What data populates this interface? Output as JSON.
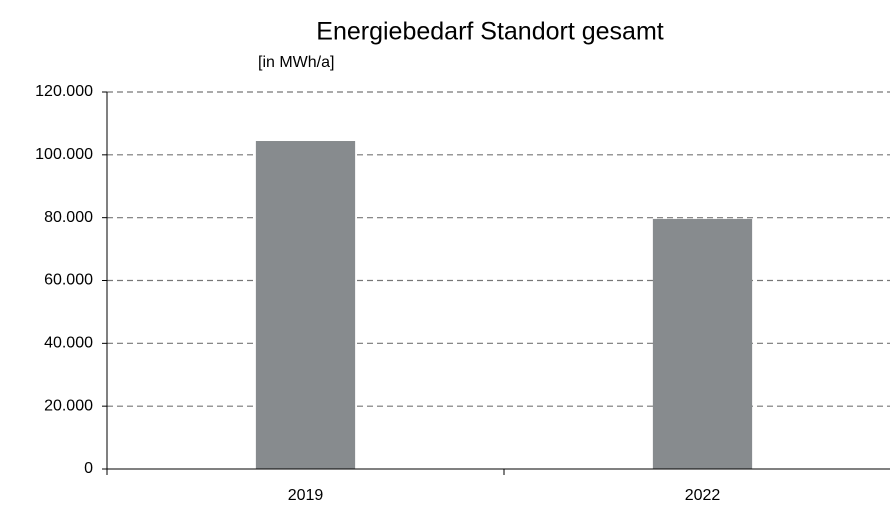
{
  "chart_data": {
    "type": "bar",
    "title": "Energiebedarf Standort gesamt",
    "subtitle": "[in MWh/a]",
    "categories": [
      "2019",
      "2022"
    ],
    "values": [
      104400,
      79600
    ],
    "color": "#878b8e",
    "ylim": [
      0,
      120000
    ],
    "yticks": [
      0,
      {
        "value": 20000,
        "label": "20.000"
      },
      {
        "value": 40000,
        "label": "40.000"
      },
      {
        "value": 60000,
        "label": "60.000"
      },
      {
        "value": 80000,
        "label": "80.000"
      },
      {
        "value": 100000,
        "label": "100.000"
      },
      {
        "value": 120000,
        "label": "120.000"
      }
    ],
    "grid": true
  }
}
